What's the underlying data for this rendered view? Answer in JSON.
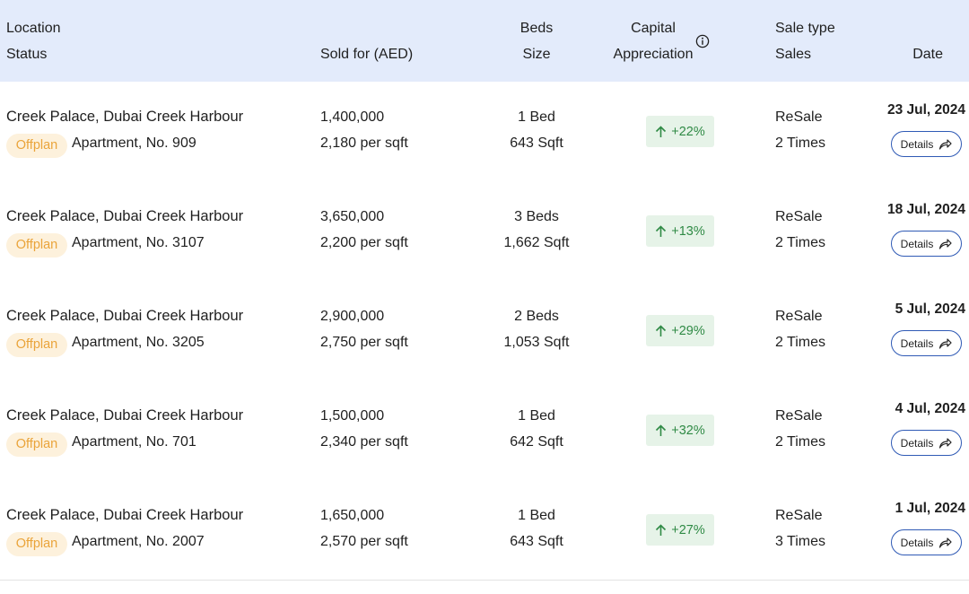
{
  "header": {
    "location": "Location",
    "status": "Status",
    "sold_for": "Sold for (AED)",
    "beds": "Beds",
    "size": "Size",
    "capital": "Capital",
    "appreciation": "Appreciation",
    "sale_type": "Sale type",
    "sales": "Sales",
    "date": "Date"
  },
  "rows": [
    {
      "location": "Creek Palace, Dubai Creek Harbour",
      "status": "Offplan",
      "apartment": "Apartment, No. 909",
      "price": "1,400,000",
      "per_sqft": "2,180 per sqft",
      "beds": "1 Bed",
      "size": "643 Sqft",
      "appreciation": "+22%",
      "sale_type": "ReSale",
      "sales": "2 Times",
      "date": "23 Jul, 2024",
      "details": "Details"
    },
    {
      "location": "Creek Palace, Dubai Creek Harbour",
      "status": "Offplan",
      "apartment": "Apartment, No. 3107",
      "price": "3,650,000",
      "per_sqft": "2,200 per sqft",
      "beds": "3 Beds",
      "size": "1,662 Sqft",
      "appreciation": "+13%",
      "sale_type": "ReSale",
      "sales": "2 Times",
      "date": "18 Jul, 2024",
      "details": "Details"
    },
    {
      "location": "Creek Palace, Dubai Creek Harbour",
      "status": "Offplan",
      "apartment": "Apartment, No. 3205",
      "price": "2,900,000",
      "per_sqft": "2,750 per sqft",
      "beds": "2 Beds",
      "size": "1,053 Sqft",
      "appreciation": "+29%",
      "sale_type": "ReSale",
      "sales": "2 Times",
      "date": "5 Jul, 2024",
      "details": "Details"
    },
    {
      "location": "Creek Palace, Dubai Creek Harbour",
      "status": "Offplan",
      "apartment": "Apartment, No. 701",
      "price": "1,500,000",
      "per_sqft": "2,340 per sqft",
      "beds": "1 Bed",
      "size": "642 Sqft",
      "appreciation": "+32%",
      "sale_type": "ReSale",
      "sales": "2 Times",
      "date": "4 Jul, 2024",
      "details": "Details"
    },
    {
      "location": "Creek Palace, Dubai Creek Harbour",
      "status": "Offplan",
      "apartment": "Apartment, No. 2007",
      "price": "1,650,000",
      "per_sqft": "2,570 per sqft",
      "beds": "1 Bed",
      "size": "643 Sqft",
      "appreciation": "+27%",
      "sale_type": "ReSale",
      "sales": "3 Times",
      "date": "1 Jul, 2024",
      "details": "Details"
    }
  ],
  "icons": {
    "info": "info-icon",
    "up": "arrow-up-icon",
    "share": "share-arrow-icon"
  },
  "colors": {
    "header_bg": "#e3ebfb",
    "badge_bg": "#fdf1dc",
    "badge_text": "#eaa43a",
    "positive_bg": "#e6f3e8",
    "positive_text": "#2f8a45",
    "button_border": "#2f5ab5"
  }
}
